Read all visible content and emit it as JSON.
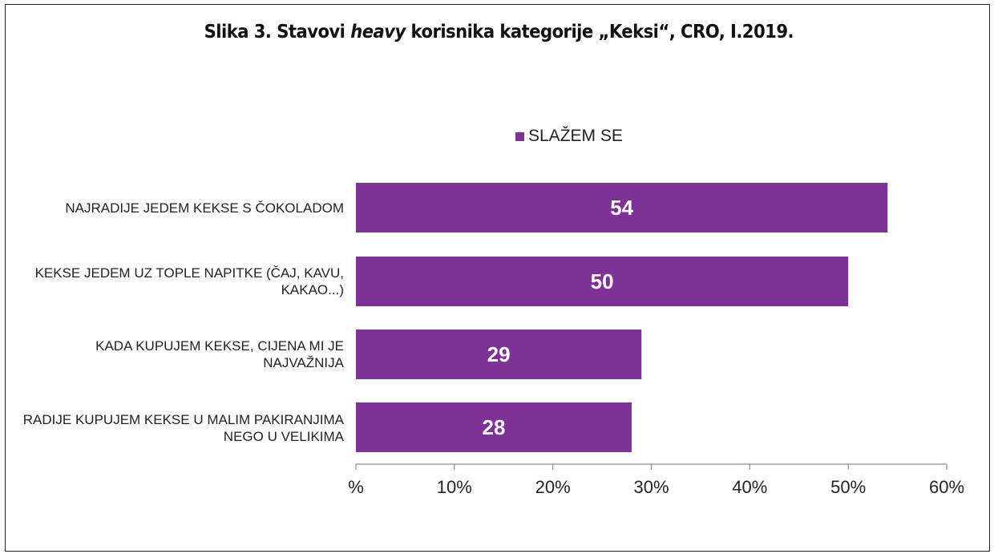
{
  "title": {
    "prefix": "Slika 3. Stavovi ",
    "emphasis": "heavy",
    "suffix": " korisnika kategorije „Keksi“, CRO, I.2019."
  },
  "colors": {
    "bar": "#7e3294",
    "axis": "#8c8c8c",
    "label_text": "#ffffff"
  },
  "chart_data": {
    "type": "bar",
    "orientation": "horizontal",
    "categories": [
      "NAJRADIJE JEDEM KEKSE S ČOKOLADOM",
      "KEKSE JEDEM UZ TOPLE NAPITKE (ČAJ, KAVU, KAKAO...)",
      "KADA KUPUJEM KEKSE, CIJENA MI JE NAJVAŽNIJA",
      "RADIJE KUPUJEM KEKSE U MALIM PAKIRANJIMA NEGO U VELIKIMA"
    ],
    "series": [
      {
        "name": "SLAŽEM SE",
        "values": [
          54,
          50,
          29,
          28
        ]
      }
    ],
    "xlim": [
      0,
      60
    ],
    "x_ticks": [
      0,
      10,
      20,
      30,
      40,
      50,
      60
    ],
    "x_tick_labels": [
      "%",
      "10%",
      "20%",
      "30%",
      "40%",
      "50%",
      "60%"
    ],
    "legend_position": "top",
    "grid": false,
    "data_labels": true
  }
}
